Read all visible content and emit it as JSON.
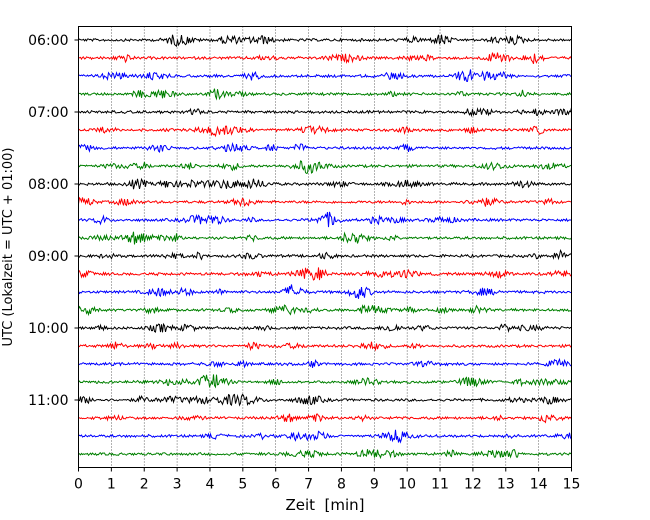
{
  "chart_data": {
    "type": "line",
    "title": "",
    "xlabel": "Zeit  [min]",
    "ylabel": "UTC (Lokalzeit = UTC + 01:00)",
    "xlim": [
      0,
      15
    ],
    "xticks": [
      "0",
      "1",
      "2",
      "3",
      "4",
      "5",
      "6",
      "7",
      "8",
      "9",
      "10",
      "11",
      "12",
      "13",
      "14",
      "15"
    ],
    "yticks": [
      "06:00",
      "07:00",
      "08:00",
      "09:00",
      "10:00",
      "11:00"
    ],
    "trace_start": "06:00",
    "trace_interval_min": 15,
    "trace_count": 24,
    "trace_colors": [
      "#000000",
      "#ff0000",
      "#0000ff",
      "#008000"
    ],
    "grid": "vertical dotted lines at each minute",
    "legend": "none"
  }
}
